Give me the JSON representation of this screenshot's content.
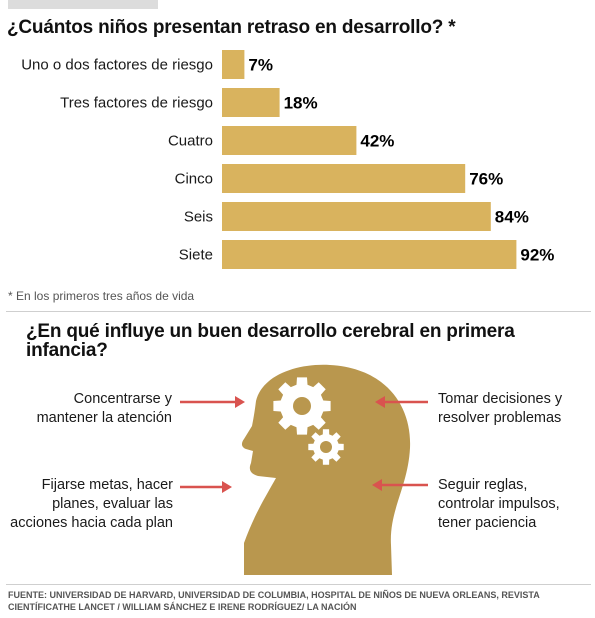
{
  "title": "¿Cuántos niños presentan retraso en desarrollo? *",
  "chart_data": {
    "type": "bar",
    "orientation": "horizontal",
    "title": "¿Cuántos niños presentan retraso en desarrollo? *",
    "categories": [
      "Uno o dos factores de riesgo",
      "Tres factores de riesgo",
      "Cuatro",
      "Cinco",
      "Seis",
      "Siete"
    ],
    "values": [
      7,
      18,
      42,
      76,
      84,
      92
    ],
    "value_labels": [
      "7%",
      "18%",
      "42%",
      "76%",
      "84%",
      "92%"
    ],
    "xlim": [
      0,
      100
    ],
    "unit": "%",
    "bar_color": "#d9b35e",
    "grid": false,
    "legend": "none"
  },
  "footnote": "* En los primeros tres años de vida",
  "section2": {
    "title": "¿En qué influye un buen desarrollo cerebral en primera infancia?",
    "head_color": "#b9974e",
    "arrow_color": "#d9534f",
    "labels": {
      "top_left": [
        "Concentrarse y",
        "mantener la atención"
      ],
      "bottom_left": [
        "Fijarse metas, hacer",
        "planes, evaluar las",
        "acciones hacia cada plan"
      ],
      "top_right": [
        "Tomar decisiones y",
        "resolver problemas"
      ],
      "bottom_right": [
        "Seguir reglas,",
        "controlar impulsos,",
        "tener paciencia"
      ]
    }
  },
  "source": "FUENTE: UNIVERSIDAD DE HARVARD, UNIVERSIDAD DE COLUMBIA, HOSPITAL DE NIÑOS DE NUEVA ORLEANS, REVISTA CIENTÍFICATHE LANCET  /  WILLIAM SÁNCHEZ E IRENE RODRÍGUEZ/ LA NACIÓN"
}
